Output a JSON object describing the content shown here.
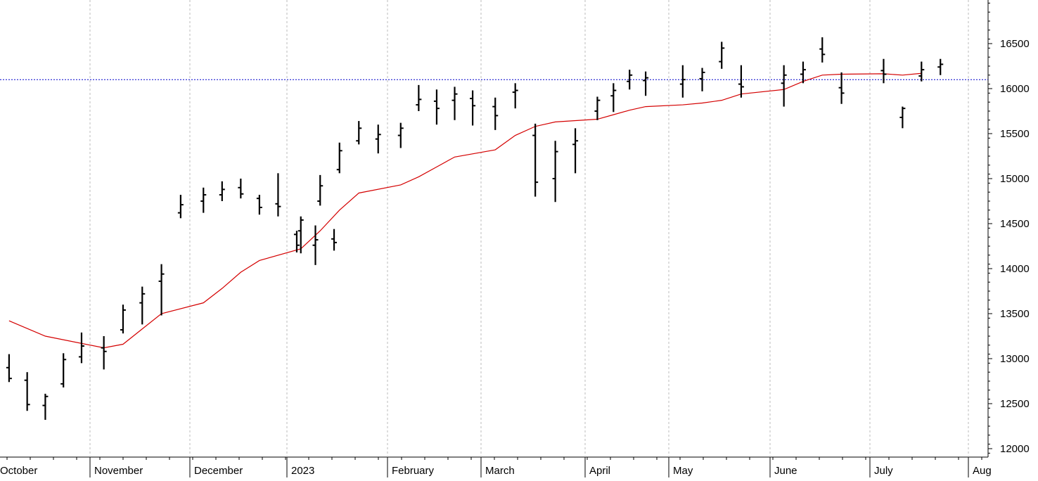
{
  "colors": {
    "price": "#000000",
    "moving_average": "#d40000",
    "reference_line": "#0000cc",
    "grid": "#bbbbbb"
  },
  "chart_data": {
    "type": "bar",
    "style": "ohlc-daily",
    "title": "",
    "xlabel": "",
    "ylabel": "",
    "ylim": [
      11900,
      17000
    ],
    "y_axis_position": "right",
    "grid": "vertical-dashed-monthly",
    "yticks": [
      12000,
      12500,
      13000,
      13500,
      14000,
      14500,
      15000,
      15500,
      16000,
      16500
    ],
    "xtick_labels": [
      "October",
      "November",
      "December",
      "2023",
      "February",
      "March",
      "April",
      "May",
      "June",
      "July",
      "Aug"
    ],
    "reference_line": {
      "value": 16100,
      "style": "dotted",
      "color": "#0000cc"
    },
    "moving_average": {
      "points": [
        [
          "Oct 2022 w1",
          13420
        ],
        [
          "Oct 2022 w3",
          13250
        ],
        [
          "Nov 2022 w1",
          13120
        ],
        [
          "Nov 2022 w2",
          13160
        ],
        [
          "Nov 2022 w3",
          13330
        ],
        [
          "Nov 2022 w4",
          13500
        ],
        [
          "Dec 2022 w1",
          13620
        ],
        [
          "Dec 2022 w2",
          13780
        ],
        [
          "Dec 2022 w3",
          13960
        ],
        [
          "Dec 2022 w4",
          14090
        ],
        [
          "Jan 2023 w1",
          14220
        ],
        [
          "Jan 2023 w2",
          14420
        ],
        [
          "Jan 2023 w3",
          14650
        ],
        [
          "Jan 2023 w4",
          14840
        ],
        [
          "Feb 2023 w1",
          14930
        ],
        [
          "Feb 2023 w2",
          15020
        ],
        [
          "Feb 2023 w3",
          15130
        ],
        [
          "Feb 2023 w4",
          15240
        ],
        [
          "Mar 2023 w1",
          15320
        ],
        [
          "Mar 2023 w2",
          15480
        ],
        [
          "Mar 2023 w3",
          15580
        ],
        [
          "Mar 2023 w4",
          15630
        ],
        [
          "Apr 2023 w1",
          15660
        ],
        [
          "Apr 2023 w2",
          15710
        ],
        [
          "Apr 2023 w3",
          15760
        ],
        [
          "Apr 2023 w4",
          15800
        ],
        [
          "May 2023 w1",
          15820
        ],
        [
          "May 2023 w2",
          15840
        ],
        [
          "May 2023 w3",
          15870
        ],
        [
          "May 2023 w4",
          15940
        ],
        [
          "Jun 2023 w1",
          15990
        ],
        [
          "Jun 2023 w2",
          16080
        ],
        [
          "Jun 2023 w3",
          16150
        ],
        [
          "Jun 2023 w4",
          16160
        ],
        [
          "Jul 2023 w1",
          16165
        ],
        [
          "Jul 2023 w2",
          16150
        ],
        [
          "Jul 2023 w3",
          16170
        ]
      ]
    },
    "series": [
      {
        "bars": [
          [
            "Oct 2022 w1",
            12900,
            13050,
            12740,
            12780
          ],
          [
            "Oct 2022 w2",
            12760,
            12850,
            12420,
            12490
          ],
          [
            "Oct 2022 w3",
            12480,
            12610,
            12320,
            12580
          ],
          [
            "Oct 2022 w4",
            12720,
            13060,
            12680,
            12990
          ],
          [
            "Oct 2022 w5",
            13020,
            13290,
            12950,
            13140
          ],
          [
            "Nov 2022 w1",
            13120,
            13250,
            12880,
            13080
          ],
          [
            "Nov 2022 w2",
            13320,
            13600,
            13280,
            13540
          ],
          [
            "Nov 2022 w3",
            13620,
            13800,
            13380,
            13720
          ],
          [
            "Nov 2022 w4",
            13860,
            14050,
            13480,
            13940
          ],
          [
            "Nov 2022 w5",
            14620,
            14820,
            14560,
            14710
          ],
          [
            "Dec 2022 w1",
            14750,
            14900,
            14620,
            14820
          ],
          [
            "Dec 2022 w2",
            14820,
            14970,
            14750,
            14880
          ],
          [
            "Dec 2022 w3",
            14900,
            15000,
            14780,
            14830
          ],
          [
            "Dec 2022 w4",
            14780,
            14820,
            14600,
            14680
          ],
          [
            "Dec 2022 w5",
            14720,
            15060,
            14580,
            14690
          ],
          [
            "Dec 2022 w6",
            14380,
            14420,
            14180,
            14260
          ],
          [
            "Dec 2022 w7",
            14260,
            14480,
            14040,
            14320
          ],
          [
            "Dec 2022 w8",
            14330,
            14440,
            14200,
            14290
          ],
          [
            "Jan 2023 w1",
            14420,
            14580,
            14170,
            14540
          ],
          [
            "Jan 2023 w2",
            14750,
            15040,
            14700,
            14920
          ],
          [
            "Jan 2023 w3",
            15100,
            15400,
            15060,
            15310
          ],
          [
            "Jan 2023 w4",
            15420,
            15640,
            15380,
            15560
          ],
          [
            "Jan 2023 w5",
            15440,
            15600,
            15280,
            15490
          ],
          [
            "Feb 2023 w1",
            15480,
            15620,
            15340,
            15560
          ],
          [
            "Feb 2023 w2",
            15820,
            16040,
            15750,
            15880
          ],
          [
            "Feb 2023 w3",
            15860,
            15990,
            15600,
            15780
          ],
          [
            "Feb 2023 w4",
            15870,
            16020,
            15650,
            15940
          ],
          [
            "Feb 2023 w5",
            15890,
            15980,
            15590,
            15810
          ],
          [
            "Mar 2023 w1",
            15800,
            15900,
            15540,
            15700
          ],
          [
            "Mar 2023 w2",
            15960,
            16060,
            15780,
            15980
          ],
          [
            "Mar 2023 w3",
            15480,
            15610,
            14800,
            14960
          ],
          [
            "Mar 2023 w4",
            15000,
            15420,
            14740,
            15300
          ],
          [
            "Mar 2023 w5",
            15380,
            15560,
            15060,
            15420
          ],
          [
            "Apr 2023 w1",
            15750,
            15910,
            15650,
            15870
          ],
          [
            "Apr 2023 w2",
            15920,
            16060,
            15740,
            15980
          ],
          [
            "Apr 2023 w3",
            16080,
            16210,
            15990,
            16150
          ],
          [
            "Apr 2023 w4",
            16090,
            16190,
            15920,
            16120
          ],
          [
            "May 2023 w1",
            16050,
            16260,
            15900,
            16100
          ],
          [
            "May 2023 w2",
            16110,
            16230,
            15970,
            16180
          ],
          [
            "May 2023 w3",
            16300,
            16520,
            16220,
            16450
          ],
          [
            "May 2023 w4",
            16050,
            16260,
            15900,
            16020
          ],
          [
            "Jun 2023 w1",
            16060,
            16260,
            15800,
            16150
          ],
          [
            "Jun 2023 w2",
            16160,
            16300,
            16060,
            16210
          ],
          [
            "Jun 2023 w3",
            16440,
            16570,
            16290,
            16380
          ],
          [
            "Jun 2023 w4",
            16010,
            16180,
            15830,
            15950
          ],
          [
            "Jul 2023 w1",
            16200,
            16330,
            16060,
            16160
          ],
          [
            "Jul 2023 w2",
            15680,
            15800,
            15560,
            15780
          ],
          [
            "Jul 2023 w3",
            16140,
            16300,
            16080,
            16210
          ],
          [
            "Jul 2023 w4",
            16240,
            16330,
            16150,
            16270
          ]
        ]
      }
    ]
  }
}
